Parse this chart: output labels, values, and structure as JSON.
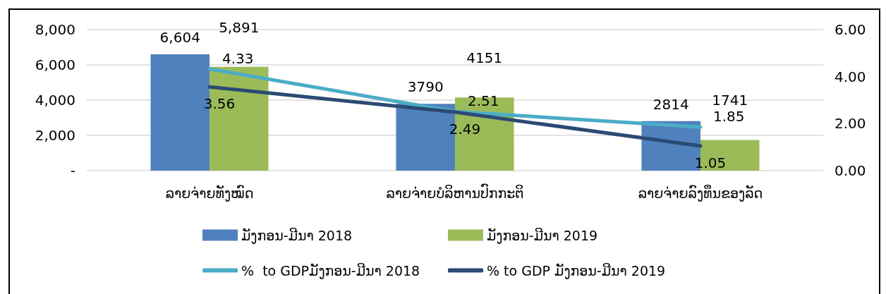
{
  "chart_data": {
    "type": "bar",
    "categories": [
      "ລາຍຈ່າຍທັງໝົດ",
      "ລາຍຈ່າຍບໍລິຫານປົກກະຕິ",
      "ລາຍຈ່າຍລົງທຶນຂອງລັດ"
    ],
    "series": [
      {
        "name": "ມັງກອນ-ມີນາ 2018",
        "color": "#4f81bd",
        "values": [
          6604,
          3790,
          2814
        ],
        "value_labels": [
          "6,604",
          "3790",
          "2814"
        ]
      },
      {
        "name": "ມັງກອນ-ມີນາ 2019",
        "color": "#9bbb59",
        "values": [
          5891,
          4151,
          1741
        ],
        "value_labels": [
          "5,891",
          "4151",
          "1741"
        ]
      },
      {
        "name": "%  to GDPມັງກອນ-ມີນາ 2018",
        "type": "line",
        "axis": "y2",
        "color": "#4bacc6",
        "values": [
          4.33,
          2.51,
          1.85
        ],
        "value_labels": [
          "4.33",
          "2.51",
          "1.85"
        ]
      },
      {
        "name": "% to GDP ມັງກອນ-ມີນາ 2019",
        "type": "line",
        "axis": "y2",
        "color": "#2b4a74",
        "values": [
          3.56,
          2.49,
          1.05
        ],
        "value_labels": [
          "3.56",
          "2.49",
          "1.05"
        ]
      }
    ],
    "ylim": [
      0,
      8000
    ],
    "yticks": [
      {
        "value": 0,
        "label": "-"
      },
      {
        "value": 2000,
        "label": "2,000"
      },
      {
        "value": 4000,
        "label": "4,000"
      },
      {
        "value": 6000,
        "label": "6,000"
      },
      {
        "value": 8000,
        "label": "8,000"
      }
    ],
    "y2lim": [
      0,
      6
    ],
    "y2ticks": [
      {
        "value": 0,
        "label": "0.00"
      },
      {
        "value": 2,
        "label": "2.00"
      },
      {
        "value": 4,
        "label": "4.00"
      },
      {
        "value": 6,
        "label": "6.00"
      }
    ],
    "grid": "y",
    "legend": "bottom",
    "marker": "none",
    "line_style": "solid"
  }
}
